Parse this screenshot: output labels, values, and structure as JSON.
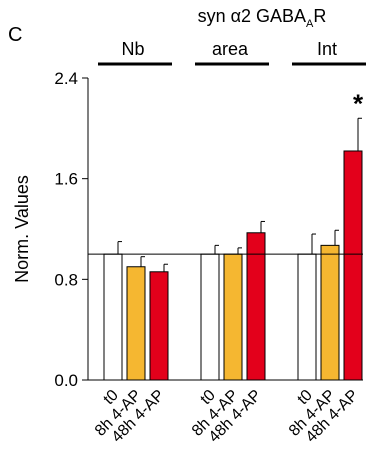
{
  "panel_label": "C",
  "chart_data": {
    "type": "bar",
    "title_main": "syn α2 GABA",
    "title_sub": "A",
    "title_end": "R",
    "ylabel": "Norm. Values",
    "xlabel": "",
    "ylim": [
      0.0,
      2.4
    ],
    "yticks": [
      "0.0",
      "0.8",
      "1.6",
      "2.4"
    ],
    "reference_line": 1.0,
    "groups": [
      {
        "label": "Nb",
        "bars": [
          {
            "category": "t0",
            "value": 1.0,
            "error": 0.1,
            "color": "#ffffff"
          },
          {
            "category": "8h 4-AP",
            "value": 0.9,
            "error": 0.08,
            "color": "#f5b731"
          },
          {
            "category": "48h 4-AP",
            "value": 0.86,
            "error": 0.06,
            "color": "#e3001b"
          }
        ]
      },
      {
        "label": "area",
        "bars": [
          {
            "category": "t0",
            "value": 1.0,
            "error": 0.07,
            "color": "#ffffff"
          },
          {
            "category": "8h 4-AP",
            "value": 1.0,
            "error": 0.05,
            "color": "#f5b731"
          },
          {
            "category": "48h 4-AP",
            "value": 1.17,
            "error": 0.09,
            "color": "#e3001b"
          }
        ]
      },
      {
        "label": "Int",
        "bars": [
          {
            "category": "t0",
            "value": 1.0,
            "error": 0.16,
            "color": "#ffffff"
          },
          {
            "category": "8h 4-AP",
            "value": 1.07,
            "error": 0.12,
            "color": "#f5b731"
          },
          {
            "category": "48h 4-AP",
            "value": 1.82,
            "error": 0.26,
            "color": "#e3001b",
            "annotation": "*"
          }
        ]
      }
    ]
  }
}
